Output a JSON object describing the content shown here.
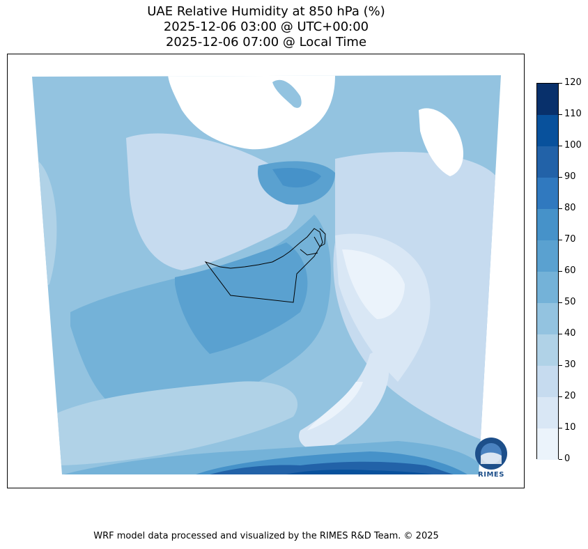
{
  "title": {
    "line1": "UAE Relative Humidity at 850 hPa (%)",
    "line2": "2025-12-06 03:00 @ UTC+00:00",
    "line3": "2025-12-06 07:00 @ Local Time"
  },
  "colorbar": {
    "ticks": [
      "120",
      "110",
      "100",
      "90",
      "80",
      "70",
      "60",
      "50",
      "40",
      "30",
      "20",
      "10",
      "0"
    ],
    "colors": [
      "#08306b",
      "#08519c",
      "#2262a8",
      "#3079bf",
      "#4692c9",
      "#5aa1d0",
      "#74b2d8",
      "#93c3e0",
      "#b0d2e7",
      "#c6dbef",
      "#d9e7f5",
      "#ebf3fb"
    ]
  },
  "logo": {
    "text": "RIMES"
  },
  "footer": "WRF model data processed and visualized by the RIMES R&D Team. © 2025"
}
